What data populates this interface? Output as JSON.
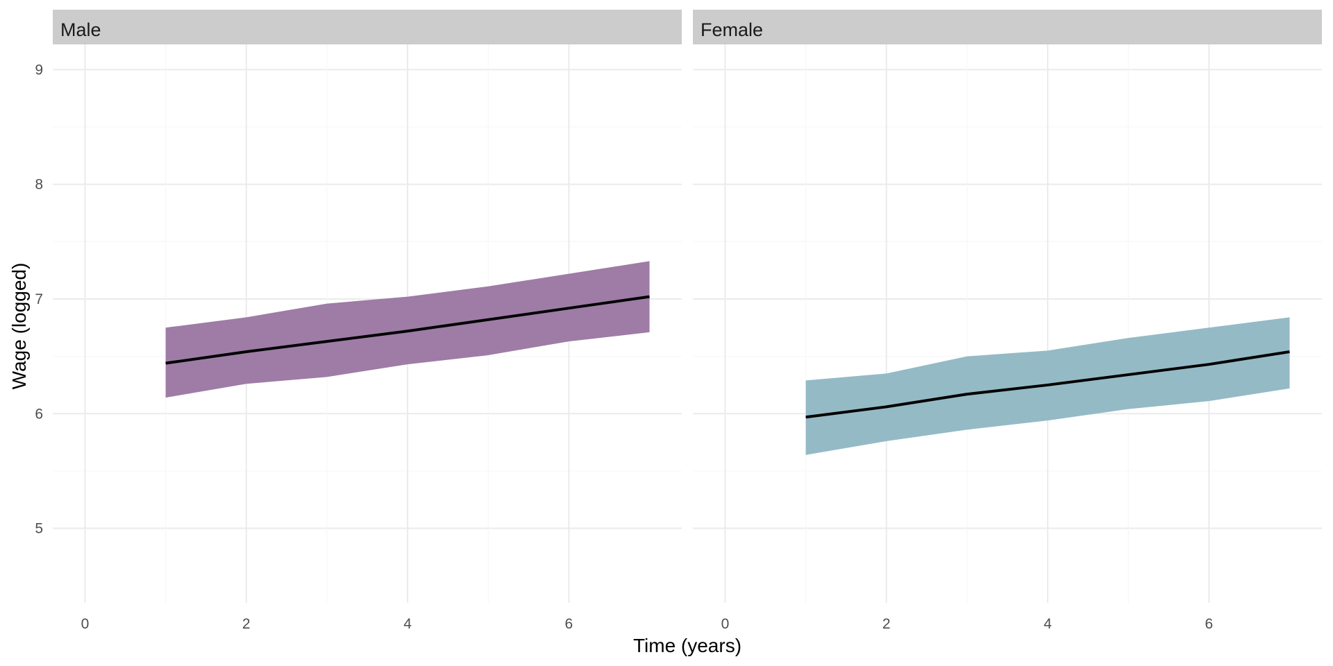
{
  "chart_data": {
    "type": "line",
    "facet_by": "sex",
    "xlabel": "Time (years)",
    "ylabel": "Wage (logged)",
    "xlim": [
      -0.4,
      7.4
    ],
    "ylim": [
      4.35,
      9.22
    ],
    "xticks": [
      0,
      2,
      4,
      6
    ],
    "yticks": [
      5,
      6,
      7,
      8,
      9
    ],
    "grid": true,
    "legend": "none",
    "panels": [
      {
        "label": "Male",
        "fill_color": "#9e7ca6",
        "x": [
          1,
          2,
          3,
          4,
          5,
          6,
          7
        ],
        "mean": [
          6.44,
          6.54,
          6.63,
          6.72,
          6.82,
          6.92,
          7.02
        ],
        "lower": [
          6.14,
          6.26,
          6.32,
          6.43,
          6.51,
          6.63,
          6.71
        ],
        "upper": [
          6.75,
          6.84,
          6.96,
          7.02,
          7.11,
          7.22,
          7.33
        ]
      },
      {
        "label": "Female",
        "fill_color": "#94bac5",
        "x": [
          1,
          2,
          3,
          4,
          5,
          6,
          7
        ],
        "mean": [
          5.97,
          6.06,
          6.17,
          6.25,
          6.34,
          6.43,
          6.54
        ],
        "lower": [
          5.64,
          5.76,
          5.86,
          5.94,
          6.04,
          6.11,
          6.22
        ],
        "upper": [
          6.29,
          6.35,
          6.5,
          6.55,
          6.66,
          6.75,
          6.84
        ]
      }
    ]
  }
}
